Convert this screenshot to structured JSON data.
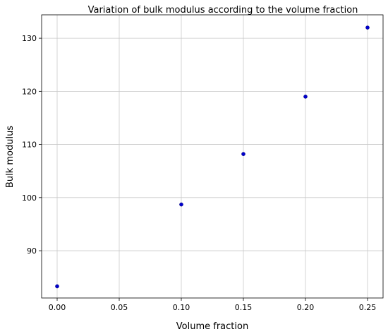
{
  "chart_data": {
    "type": "scatter",
    "title": "Variation of bulk modulus according to the volume fraction",
    "xlabel": "Volume fraction",
    "ylabel": "Bulk modulus",
    "x": [
      0.0,
      0.1,
      0.15,
      0.2,
      0.25
    ],
    "y": [
      83.3,
      98.7,
      108.2,
      119.0,
      132.0
    ],
    "xlim": [
      -0.0125,
      0.2625
    ],
    "ylim": [
      81.1,
      134.4
    ],
    "xticks": [
      0.0,
      0.05,
      0.1,
      0.15,
      0.2,
      0.25
    ],
    "xtick_labels": [
      "0.00",
      "0.05",
      "0.10",
      "0.15",
      "0.20",
      "0.25"
    ],
    "yticks": [
      90,
      100,
      110,
      120,
      130
    ],
    "ytick_labels": [
      "90",
      "100",
      "110",
      "120",
      "130"
    ],
    "grid": true,
    "marker_color": "#0000cc"
  }
}
